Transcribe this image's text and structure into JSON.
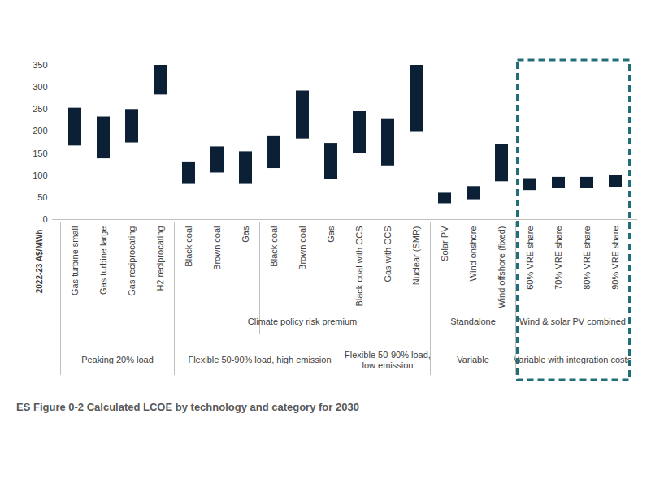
{
  "chart_data": {
    "type": "floating_bar",
    "title": "ES Figure 0-2 Calculated LCOE by technology and category for 2030",
    "y_label": "2022-23 A$/MWh",
    "categories": [
      "Gas turbine small",
      "Gas turbine large",
      "Gas reciprocating",
      "H2 reciprocating",
      "Black coal",
      "Brown coal",
      "Gas",
      "Black coal",
      "Brown coal",
      "Gas",
      "Black coal with CCS",
      "Gas with CCS",
      "Nuclear (SMR)",
      "Solar PV",
      "Wind onshore",
      "Wind offshore (fixed)",
      "60% VRE share",
      "70% VRE share",
      "80% VRE share",
      "90% VRE share"
    ],
    "values": [
      [
        167,
        253
      ],
      [
        138,
        233
      ],
      [
        174,
        250
      ],
      [
        283,
        350
      ],
      [
        80,
        131
      ],
      [
        106,
        165
      ],
      [
        80,
        154
      ],
      [
        116,
        190
      ],
      [
        183,
        292
      ],
      [
        92,
        173
      ],
      [
        150,
        245
      ],
      [
        122,
        229
      ],
      [
        198,
        350
      ],
      [
        36,
        60
      ],
      [
        45,
        75
      ],
      [
        86,
        171
      ],
      [
        66,
        93
      ],
      [
        70,
        96
      ],
      [
        70,
        96
      ],
      [
        73,
        100
      ]
    ],
    "subgroups": [
      null,
      null,
      null,
      null,
      null,
      null,
      null,
      "Climate policy risk premium",
      "Climate policy risk premium",
      "Climate policy risk premium",
      null,
      null,
      null,
      "Standalone",
      "Standalone",
      "Standalone",
      "Wind & solar PV combined",
      "Wind & solar PV combined",
      "Wind & solar PV combined",
      "Wind & solar PV combined"
    ],
    "groups": [
      "Peaking 20% load",
      "Peaking 20% load",
      "Peaking 20% load",
      "Peaking 20% load",
      "Flexible 50-90% load, high emission",
      "Flexible 50-90% load, high emission",
      "Flexible 50-90% load, high emission",
      "Flexible 50-90% load, high emission",
      "Flexible 50-90% load, high emission",
      "Flexible 50-90% load, high emission",
      "Flexible 50-90% load, low emission",
      "Flexible 50-90% load, low emission",
      "Flexible 50-90% load, low emission",
      "Variable",
      "Variable",
      "Variable",
      "Variable with integration costs",
      "Variable with integration costs",
      "Variable with integration costs",
      "Variable with integration costs"
    ],
    "color": "#0b1f35",
    "ylim": [
      0,
      350
    ],
    "yticks": [
      0,
      50,
      100,
      150,
      200,
      250,
      300,
      350
    ],
    "grid": false
  }
}
